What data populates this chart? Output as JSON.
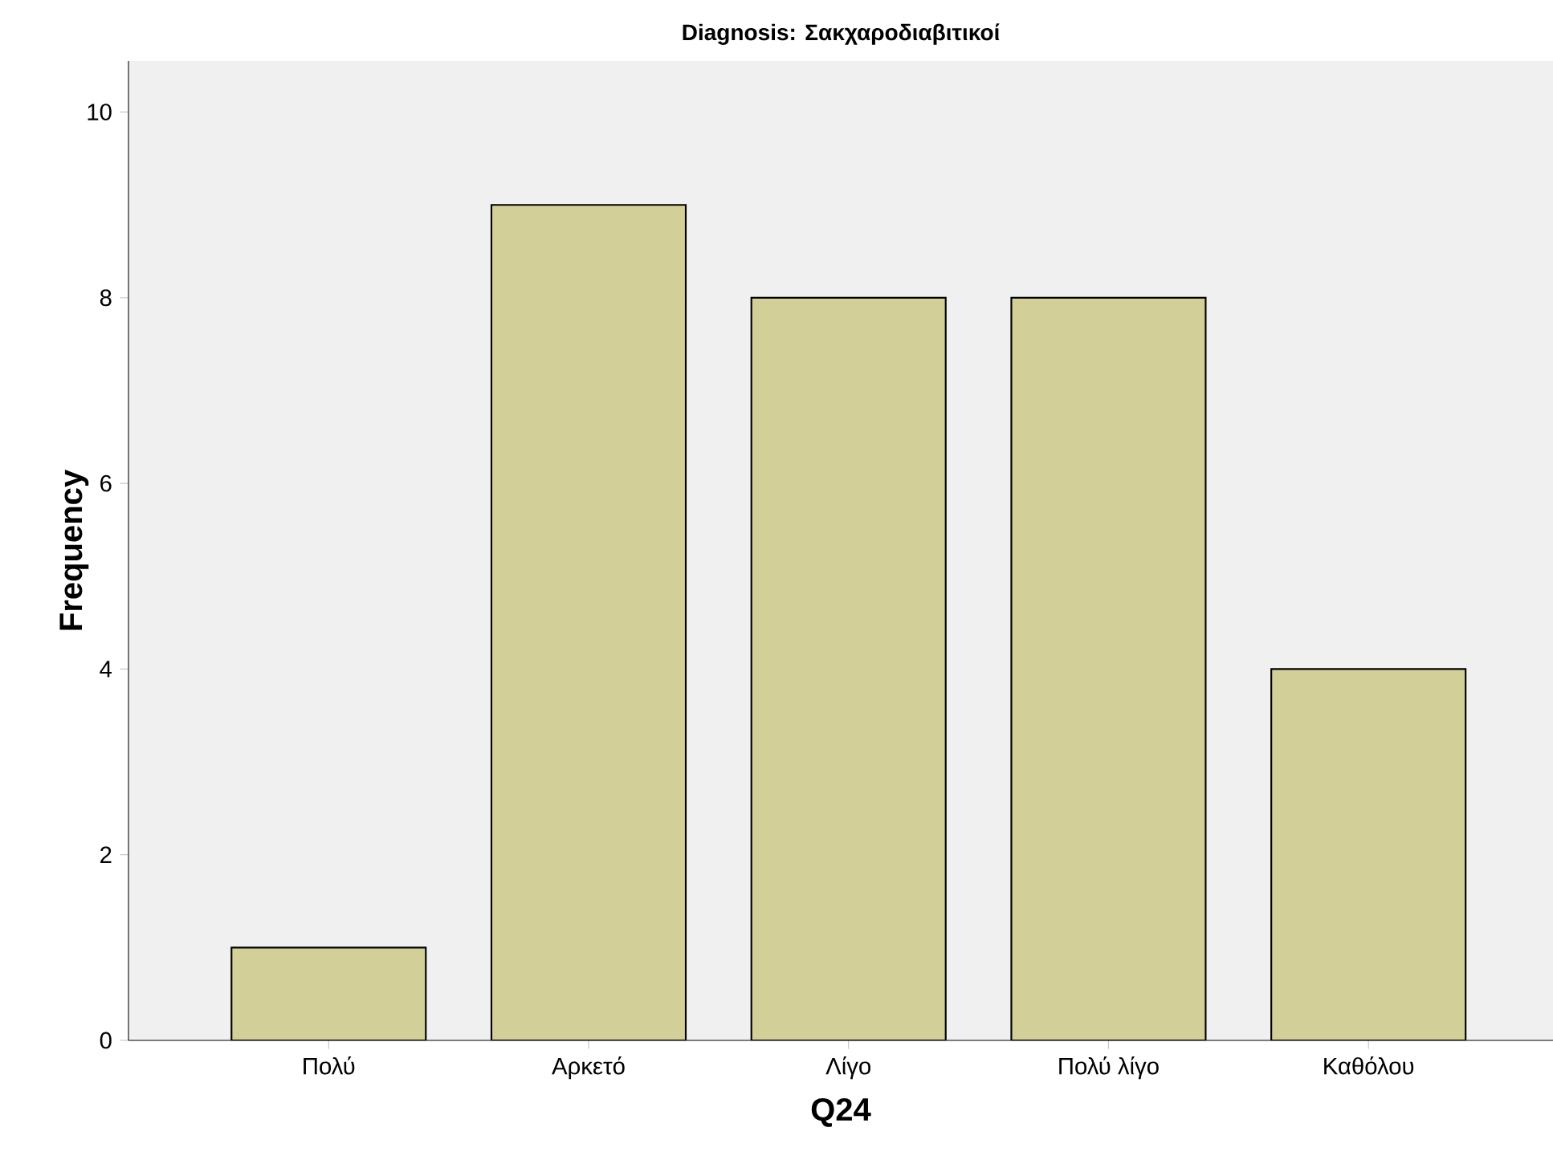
{
  "chart_data": {
    "type": "bar",
    "title": "Diagnosis: Σακχαροδιαβιτικοί",
    "xlabel": "Q24",
    "ylabel": "Frequency",
    "categories": [
      "Πολύ",
      "Αρκετό",
      "Λίγο",
      "Πολύ λίγο",
      "Καθόλου"
    ],
    "values": [
      1,
      9,
      8,
      8,
      4
    ],
    "color": "#d3cf98",
    "ylim": [
      0,
      10.55
    ],
    "yticks": [
      0,
      2,
      4,
      6,
      8,
      10
    ],
    "grid": false
  }
}
